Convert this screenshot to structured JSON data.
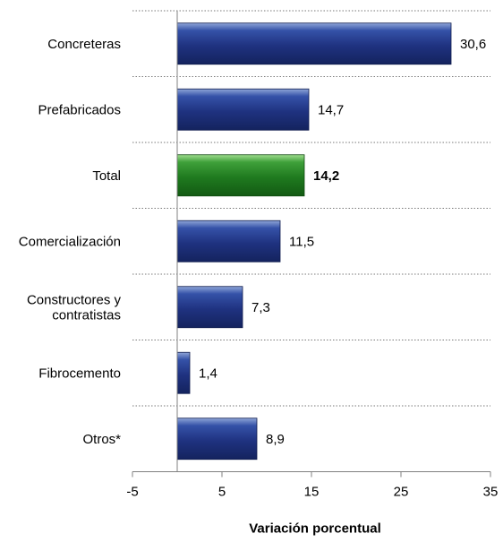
{
  "chart_data": {
    "type": "bar",
    "orientation": "horizontal",
    "categories": [
      "Concreteras",
      "Prefabricados",
      "Total",
      "Comercialización",
      "Constructores y contratistas",
      "Fibrocemento",
      "Otros*"
    ],
    "category_label_lines": [
      [
        "Concreteras"
      ],
      [
        "Prefabricados"
      ],
      [
        "Total"
      ],
      [
        "Comercialización"
      ],
      [
        "Constructores y",
        "contratistas"
      ],
      [
        "Fibrocemento"
      ],
      [
        "Otros*"
      ]
    ],
    "values": [
      30.6,
      14.7,
      14.2,
      11.5,
      7.3,
      1.4,
      8.9
    ],
    "value_labels": [
      "30,6",
      "14,7",
      "14,2",
      "11,5",
      "7,3",
      "1,4",
      "8,9"
    ],
    "highlight_category": "Total",
    "xlabel": "Variación porcentual",
    "xlim": [
      -5,
      35
    ],
    "x_ticks": [
      -5,
      5,
      15,
      25,
      35
    ],
    "x_tick_labels": [
      "-5",
      "5",
      "15",
      "25",
      "35"
    ],
    "grid": "horizontal dotted separators",
    "colors": {
      "bar": "#1f3280",
      "bar_highlight": "#1f7a1f"
    }
  }
}
